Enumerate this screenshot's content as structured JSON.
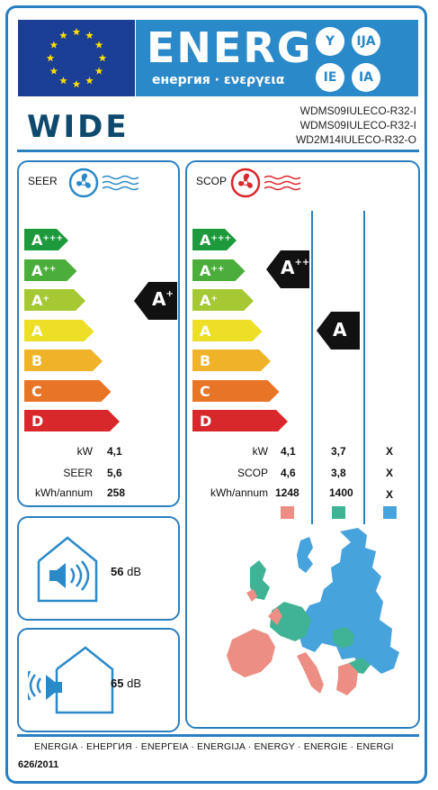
{
  "header": {
    "energy_word": "ENERG",
    "energy_subtitle": "енергия · ενεργεια",
    "language_codes": [
      "Y",
      "IJA",
      "IE",
      "IA"
    ]
  },
  "supplier": {
    "brand": "WIDE",
    "models": [
      "WDMS09IULECO-R32-I",
      "WDMS09IULECO-R32-I",
      "WD2M14IULECO-R32-O"
    ]
  },
  "scale_classes": [
    {
      "base": "A",
      "sup": "+++",
      "color": "#1e9a3c"
    },
    {
      "base": "A",
      "sup": "++",
      "color": "#4cae3a"
    },
    {
      "base": "A",
      "sup": "+",
      "color": "#a6c832"
    },
    {
      "base": "A",
      "sup": "",
      "color": "#ecdf26"
    },
    {
      "base": "B",
      "sup": "",
      "color": "#f0b229"
    },
    {
      "base": "C",
      "sup": "",
      "color": "#e87426"
    },
    {
      "base": "D",
      "sup": "",
      "color": "#d8282b"
    }
  ],
  "cooling": {
    "title": "SEER",
    "class_base": "A",
    "class_sup": "+",
    "rows": [
      {
        "label": "kW",
        "value": "4,1"
      },
      {
        "label": "SEER",
        "value": "5,6"
      },
      {
        "label": "kWh/annum",
        "value": "258"
      }
    ]
  },
  "heating": {
    "title": "SCOP",
    "warm_class_base": "A",
    "warm_class_sup": "++",
    "average_class_base": "A",
    "average_class_sup": "",
    "rows": [
      {
        "label": "kW",
        "warm": "4,1",
        "average": "3,7",
        "cold": "X"
      },
      {
        "label": "SCOP",
        "warm": "4,6",
        "average": "3,8",
        "cold": "X"
      },
      {
        "label": "kWh/annum",
        "warm": "1248",
        "average": "1400",
        "cold": "X"
      }
    ],
    "zone_colors": [
      "#ec8e84",
      "#3fb393",
      "#47a3dc"
    ]
  },
  "noise": {
    "indoor_value": "56",
    "outdoor_value": "65",
    "unit": "dB"
  },
  "footer": {
    "languages": "ENERGIA · ЕНЕРГИЯ · ΕΝΕΡΓΕΙΑ · ENERGIJA · ENERGY · ENERGIE · ENERGI",
    "regulation": "626/2011"
  },
  "icons": {
    "cooling": "fan-snowflake-icon",
    "heating": "fan-heat-icon",
    "indoor": "indoor-speaker-house-icon",
    "outdoor": "outdoor-speaker-house-icon",
    "map": "europe-climate-zone-map"
  }
}
